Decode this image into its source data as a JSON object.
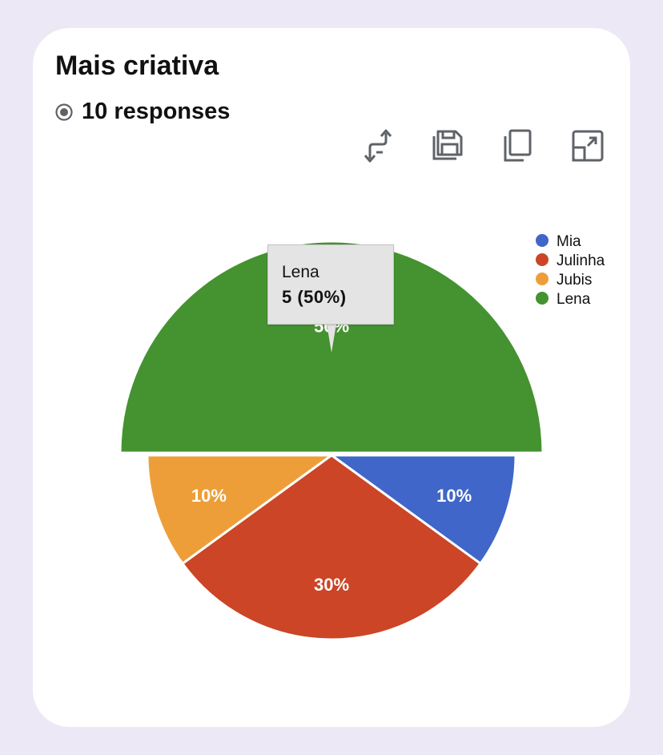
{
  "card": {
    "title": "Mais criativa",
    "responses": "10 responses"
  },
  "toolbar": {
    "icons": [
      "swap-icon",
      "save-icon",
      "copy-icon",
      "expand-icon"
    ]
  },
  "chart_data": {
    "type": "pie",
    "slices": [
      {
        "name": "Mia",
        "value": 1,
        "percent": "10%",
        "color": "#3f66c8"
      },
      {
        "name": "Julinha",
        "value": 3,
        "percent": "30%",
        "color": "#cb4526"
      },
      {
        "name": "Jubis",
        "value": 1,
        "percent": "10%",
        "color": "#ee9e38"
      },
      {
        "name": "Lena",
        "value": 5,
        "percent": "50%",
        "color": "#449230"
      }
    ],
    "exploded_slice": "Lena",
    "legend_position": "top-right",
    "tooltip": {
      "name": "Lena",
      "value": "5 (50%)"
    }
  }
}
